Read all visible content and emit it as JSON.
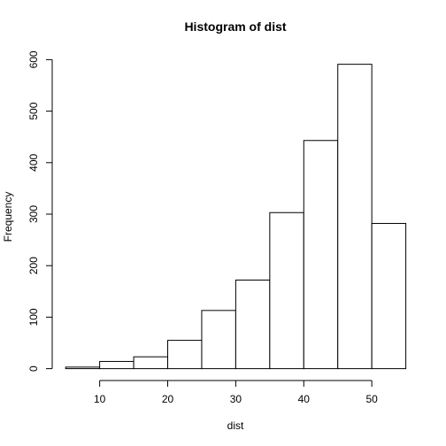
{
  "chart_data": {
    "type": "bar",
    "title": "Histogram of dist",
    "xlabel": "dist",
    "ylabel": "Frequency",
    "bins": [
      [
        5,
        10
      ],
      [
        10,
        15
      ],
      [
        15,
        20
      ],
      [
        20,
        25
      ],
      [
        25,
        30
      ],
      [
        30,
        35
      ],
      [
        35,
        40
      ],
      [
        40,
        45
      ],
      [
        45,
        50
      ],
      [
        50,
        55
      ]
    ],
    "values": [
      3,
      14,
      23,
      55,
      113,
      172,
      303,
      443,
      591,
      282
    ],
    "xlim": [
      5,
      55
    ],
    "ylim": [
      0,
      600
    ],
    "x_ticks": [
      10,
      20,
      30,
      40,
      50
    ],
    "y_ticks": [
      0,
      100,
      200,
      300,
      400,
      500,
      600
    ],
    "grid": false,
    "colors": {
      "bar_fill": "#ffffff",
      "bar_stroke": "#000000"
    }
  }
}
